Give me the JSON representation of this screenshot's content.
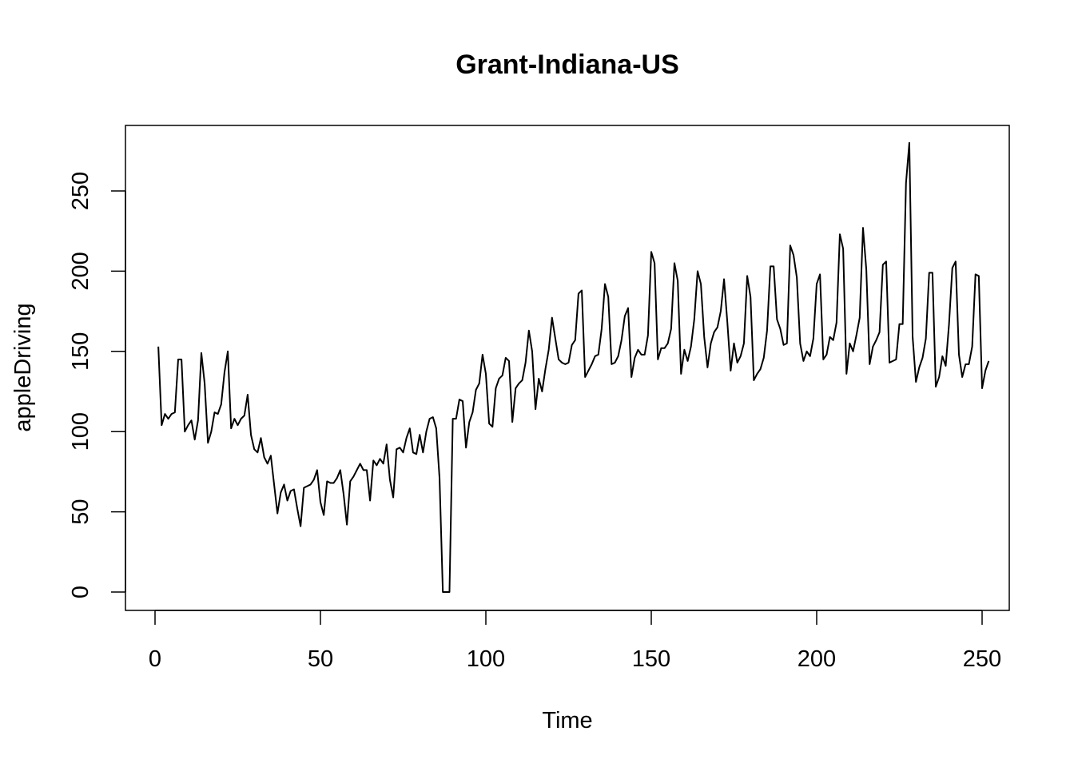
{
  "chart_data": {
    "type": "line",
    "title": "Grant-Indiana-US",
    "xlabel": "Time",
    "ylabel": "appleDriving",
    "xlim": [
      1,
      248
    ],
    "ylim": [
      0,
      280
    ],
    "x_ticks": [
      0,
      50,
      100,
      150,
      200,
      250
    ],
    "y_ticks": [
      0,
      50,
      100,
      150,
      200,
      250
    ],
    "grid": false,
    "legend": "none",
    "line_color": "#000000",
    "series": [
      {
        "values": [
          153,
          104,
          111,
          108,
          111,
          112,
          145,
          145,
          100,
          104,
          107,
          95,
          107,
          149,
          130,
          93,
          100,
          112,
          111,
          117,
          137,
          150,
          102,
          108,
          104,
          108,
          110,
          123,
          98,
          89,
          87,
          96,
          84,
          80,
          85,
          67,
          49,
          62,
          67,
          57,
          63,
          64,
          52,
          41,
          65,
          66,
          67,
          70,
          76,
          56,
          48,
          69,
          68,
          68,
          71,
          76,
          61,
          42,
          69,
          72,
          76,
          80,
          76,
          76,
          57,
          82,
          79,
          83,
          80,
          92,
          70,
          59,
          89,
          90,
          87,
          96,
          102,
          87,
          86,
          98,
          87,
          100,
          108,
          109,
          102,
          71,
          0,
          0,
          0,
          108,
          108,
          120,
          119,
          90,
          106,
          112,
          126,
          130,
          148,
          136,
          105,
          103,
          127,
          133,
          135,
          146,
          144,
          106,
          127,
          130,
          132,
          143,
          163,
          150,
          114,
          133,
          125,
          139,
          151,
          171,
          158,
          145,
          143,
          142,
          143,
          154,
          157,
          186,
          188,
          134,
          138,
          142,
          147,
          148,
          164,
          192,
          184,
          142,
          143,
          147,
          157,
          172,
          177,
          134,
          146,
          151,
          148,
          148,
          160,
          212,
          205,
          145,
          152,
          152,
          155,
          164,
          205,
          194,
          136,
          151,
          144,
          153,
          170,
          200,
          192,
          159,
          140,
          155,
          162,
          165,
          175,
          195,
          168,
          138,
          155,
          143,
          147,
          155,
          197,
          184,
          132,
          136,
          139,
          146,
          163,
          203,
          203,
          170,
          164,
          154,
          155,
          216,
          210,
          196,
          155,
          144,
          150,
          147,
          158,
          192,
          198,
          145,
          148,
          159,
          157,
          168,
          223,
          214,
          136,
          155,
          150,
          160,
          171,
          227,
          201,
          142,
          153,
          157,
          162,
          204,
          206,
          143,
          144,
          145,
          167,
          167,
          255,
          280,
          159,
          131,
          140,
          146,
          158,
          199,
          199,
          128,
          134,
          147,
          141,
          167,
          202,
          206,
          148,
          134,
          142,
          142,
          153,
          198,
          197,
          127,
          138,
          144
        ]
      }
    ]
  }
}
